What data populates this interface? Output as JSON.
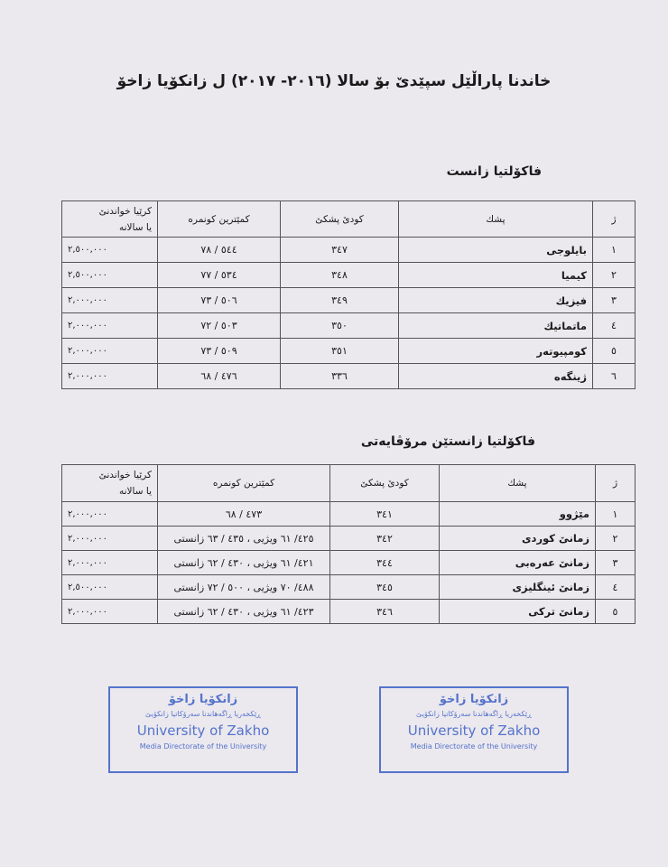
{
  "title": "خاندنا پاراڵێل سپێدێ بۆ سالا (٢٠١٦- ٢٠١٧) ل زانكۆیا زاخۆ",
  "headers": {
    "no": "ژ",
    "dept": "پشك",
    "code": "كودێ پشكێ",
    "grade": "كمێترین كونمره",
    "fee_line1": "كرێیا خواندنێ",
    "fee_line2": "یا سالانه"
  },
  "sections": [
    {
      "title": "فاكۆلتیا زانست",
      "rows": [
        {
          "no": "١",
          "dept": "بایلوجی",
          "code": "٣٤٧",
          "grade": "٥٤٤ / ٧٨",
          "fee": "٢,٥٠٠,٠٠٠"
        },
        {
          "no": "٢",
          "dept": "كیمیا",
          "code": "٣٤٨",
          "grade": "٥٣٤ / ٧٧",
          "fee": "٢,٥٠٠,٠٠٠"
        },
        {
          "no": "٣",
          "dept": "فیزیك",
          "code": "٣٤٩",
          "grade": "٥٠٦ / ٧٣",
          "fee": "٢,٠٠٠,٠٠٠"
        },
        {
          "no": "٤",
          "dept": "ماتماتیك",
          "code": "٣٥٠",
          "grade": "٥٠٣ / ٧٢",
          "fee": "٢,٠٠٠,٠٠٠"
        },
        {
          "no": "٥",
          "dept": "كومپیوتەر",
          "code": "٣٥١",
          "grade": "٥٠٩ / ٧٣",
          "fee": "٢,٠٠٠,٠٠٠"
        },
        {
          "no": "٦",
          "dept": "ژینگەه",
          "code": "٣٣٦",
          "grade": "٤٧٦ / ٦٨",
          "fee": "٢,٠٠٠,٠٠٠"
        }
      ]
    },
    {
      "title": "فاكۆلتیا زانستێن مرۆڤایەتی",
      "rows": [
        {
          "no": "١",
          "dept": "مێژوو",
          "code": "٣٤١",
          "grade": "٤٧٣ / ٦٨",
          "fee": "٢,٠٠٠,٠٠٠"
        },
        {
          "no": "٢",
          "dept": "زمانێ كوردی",
          "code": "٣٤٢",
          "grade": "٤٢٥/ ٦١ ویژیی ، ٤٣٥ / ٦٣ زانستی",
          "fee": "٢,٠٠٠,٠٠٠"
        },
        {
          "no": "٣",
          "dept": "زمانێ عەرەبی",
          "code": "٣٤٤",
          "grade": "٤٢١/ ٦١ ویژیی ، ٤٣٠ / ٦٢ زانستی",
          "fee": "٢,٠٠٠,٠٠٠"
        },
        {
          "no": "٤",
          "dept": "زمانێ ئینگلیزی",
          "code": "٣٤٥",
          "grade": "٤٨٨/ ٧٠ ویژیی ، ٥٠٠ / ٧٢ زانستی",
          "fee": "٢,٥٠٠,٠٠٠"
        },
        {
          "no": "٥",
          "dept": "زمانێ تركی",
          "code": "٣٤٦",
          "grade": "٤٢٣/ ٦١ ویژیی ، ٤٣٠ / ٦٢ زانستی",
          "fee": "٢,٠٠٠,٠٠٠"
        }
      ]
    }
  ],
  "stamp": {
    "line1": "زانكۆیا زاخۆ",
    "line2": "ڕێكخەریا ڕاگەهاندنا سەرۆكاتیا زانكۆیێ",
    "line3": "University of Zakho",
    "line4": "Media Directorate of the University",
    "color": "#3a5fc4"
  }
}
